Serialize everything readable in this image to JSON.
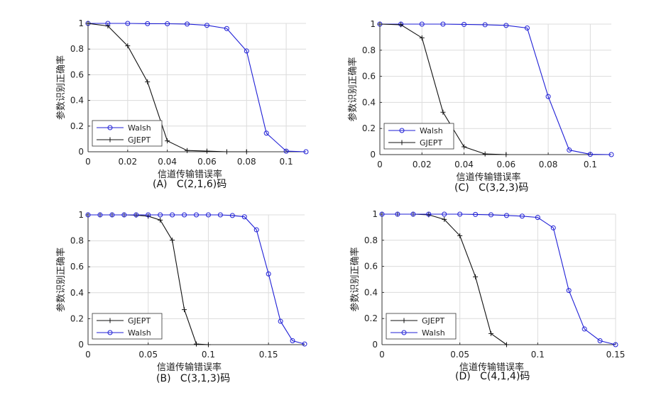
{
  "chart_data": [
    {
      "id": "A",
      "type": "line",
      "caption_label": "(A)",
      "caption_code": "C(2,1,6)码",
      "xlabel": "信道传输错误率",
      "ylabel": "参数识别正确率",
      "xlim": [
        0,
        0.11
      ],
      "ylim": [
        0,
        1
      ],
      "xticks": [
        0,
        0.02,
        0.04,
        0.06,
        0.08,
        0.1
      ],
      "xtick_labels": [
        "0",
        "0.02",
        "0.04",
        "0.06",
        "0.08",
        "0.1"
      ],
      "yticks": [
        0,
        0.2,
        0.4,
        0.6,
        0.8,
        1
      ],
      "ytick_labels": [
        "0",
        "0.2",
        "0.4",
        "0.6",
        "0.8",
        "1"
      ],
      "grid": true,
      "legend_position": "bottom-left",
      "legend_order": [
        "Walsh",
        "GJEPT"
      ],
      "series": [
        {
          "name": "Walsh",
          "color": "#1f1fd6",
          "marker": "circle",
          "x": [
            0,
            0.01,
            0.02,
            0.03,
            0.04,
            0.05,
            0.06,
            0.07,
            0.08,
            0.09,
            0.1,
            0.11
          ],
          "y": [
            1,
            1,
            1,
            0.998,
            0.997,
            0.995,
            0.985,
            0.96,
            0.785,
            0.145,
            0.005,
            0
          ]
        },
        {
          "name": "GJEPT",
          "color": "#111111",
          "marker": "plus",
          "x": [
            0,
            0.01,
            0.02,
            0.03,
            0.04,
            0.05,
            0.06,
            0.07,
            0.08
          ],
          "y": [
            1,
            0.98,
            0.825,
            0.545,
            0.085,
            0.01,
            0.005,
            0,
            0
          ]
        }
      ]
    },
    {
      "id": "C",
      "type": "line",
      "caption_label": "(C)",
      "caption_code": "C(3,2,3)码",
      "xlabel": "信道传输错误率",
      "ylabel": "参数识别正确率",
      "xlim": [
        0,
        0.11
      ],
      "ylim": [
        0,
        1
      ],
      "xticks": [
        0,
        0.02,
        0.04,
        0.06,
        0.08,
        0.1
      ],
      "xtick_labels": [
        "0",
        "0.02",
        "0.04",
        "0.06",
        "0.08",
        "0.1"
      ],
      "yticks": [
        0,
        0.2,
        0.4,
        0.6,
        0.8,
        1
      ],
      "ytick_labels": [
        "0",
        "0.2",
        "0.4",
        "0.6",
        "0.8",
        "1"
      ],
      "grid": true,
      "legend_position": "bottom-left",
      "legend_order": [
        "Walsh",
        "GJEPT"
      ],
      "series": [
        {
          "name": "Walsh",
          "color": "#1f1fd6",
          "marker": "circle",
          "x": [
            0,
            0.01,
            0.02,
            0.03,
            0.04,
            0.05,
            0.06,
            0.07,
            0.08,
            0.09,
            0.1,
            0.11
          ],
          "y": [
            1,
            1,
            1,
            1,
            0.998,
            0.995,
            0.99,
            0.97,
            0.445,
            0.035,
            0.002,
            0
          ]
        },
        {
          "name": "GJEPT",
          "color": "#111111",
          "marker": "plus",
          "x": [
            0,
            0.01,
            0.02,
            0.03,
            0.04,
            0.05,
            0.06
          ],
          "y": [
            1,
            0.995,
            0.895,
            0.325,
            0.06,
            0.005,
            0
          ]
        }
      ]
    },
    {
      "id": "B",
      "type": "line",
      "caption_label": "(B)",
      "caption_code": "C(3,1,3)码",
      "xlabel": "信道传输错误率",
      "ylabel": "参数识别正确率",
      "xlim": [
        0,
        0.18
      ],
      "ylim": [
        0,
        1
      ],
      "xticks": [
        0,
        0.05,
        0.1,
        0.15
      ],
      "xtick_labels": [
        "0",
        "0.05",
        "0.1",
        "0.15"
      ],
      "yticks": [
        0,
        0.2,
        0.4,
        0.6,
        0.8,
        1
      ],
      "ytick_labels": [
        "0",
        "0.2",
        "0.4",
        "0.6",
        "0.8",
        "1"
      ],
      "grid": true,
      "legend_position": "bottom-left",
      "legend_order": [
        "GJEPT",
        "Walsh"
      ],
      "series": [
        {
          "name": "GJEPT",
          "color": "#111111",
          "marker": "plus",
          "x": [
            0,
            0.01,
            0.02,
            0.03,
            0.04,
            0.05,
            0.06,
            0.07,
            0.08,
            0.09,
            0.1
          ],
          "y": [
            1,
            1,
            1,
            1,
            0.998,
            0.99,
            0.96,
            0.805,
            0.27,
            0.005,
            0
          ]
        },
        {
          "name": "Walsh",
          "color": "#1f1fd6",
          "marker": "circle",
          "x": [
            0,
            0.01,
            0.02,
            0.03,
            0.04,
            0.05,
            0.06,
            0.07,
            0.08,
            0.09,
            0.1,
            0.11,
            0.12,
            0.13,
            0.14,
            0.15,
            0.16,
            0.17,
            0.18
          ],
          "y": [
            1,
            1,
            1,
            1,
            1,
            1,
            1,
            1,
            1,
            1,
            1,
            1,
            0.995,
            0.985,
            0.885,
            0.545,
            0.18,
            0.03,
            0.005
          ]
        }
      ]
    },
    {
      "id": "D",
      "type": "line",
      "caption_label": "(D)",
      "caption_code": "C(4,1,4)码",
      "xlabel": "信道传输错误率",
      "ylabel": "参数识别正确率",
      "xlim": [
        0,
        0.15
      ],
      "ylim": [
        0,
        1
      ],
      "xticks": [
        0,
        0.05,
        0.1,
        0.15
      ],
      "xtick_labels": [
        "0",
        "0.05",
        "0.1",
        "0.15"
      ],
      "yticks": [
        0,
        0.2,
        0.4,
        0.6,
        0.8,
        1
      ],
      "ytick_labels": [
        "0",
        "0.2",
        "0.4",
        "0.6",
        "0.8",
        "1"
      ],
      "grid": true,
      "legend_position": "bottom-left",
      "legend_order": [
        "GJEPT",
        "Walsh"
      ],
      "series": [
        {
          "name": "GJEPT",
          "color": "#111111",
          "marker": "plus",
          "x": [
            0,
            0.01,
            0.02,
            0.03,
            0.04,
            0.05,
            0.06,
            0.07,
            0.08
          ],
          "y": [
            1,
            1,
            1,
            0.995,
            0.96,
            0.835,
            0.52,
            0.085,
            0
          ]
        },
        {
          "name": "Walsh",
          "color": "#1f1fd6",
          "marker": "circle",
          "x": [
            0,
            0.01,
            0.02,
            0.03,
            0.04,
            0.05,
            0.06,
            0.07,
            0.08,
            0.09,
            0.1,
            0.11,
            0.12,
            0.13,
            0.14,
            0.15
          ],
          "y": [
            1,
            1,
            1,
            1,
            1,
            1,
            0.998,
            0.995,
            0.99,
            0.985,
            0.975,
            0.895,
            0.415,
            0.12,
            0.03,
            0
          ]
        }
      ]
    }
  ]
}
